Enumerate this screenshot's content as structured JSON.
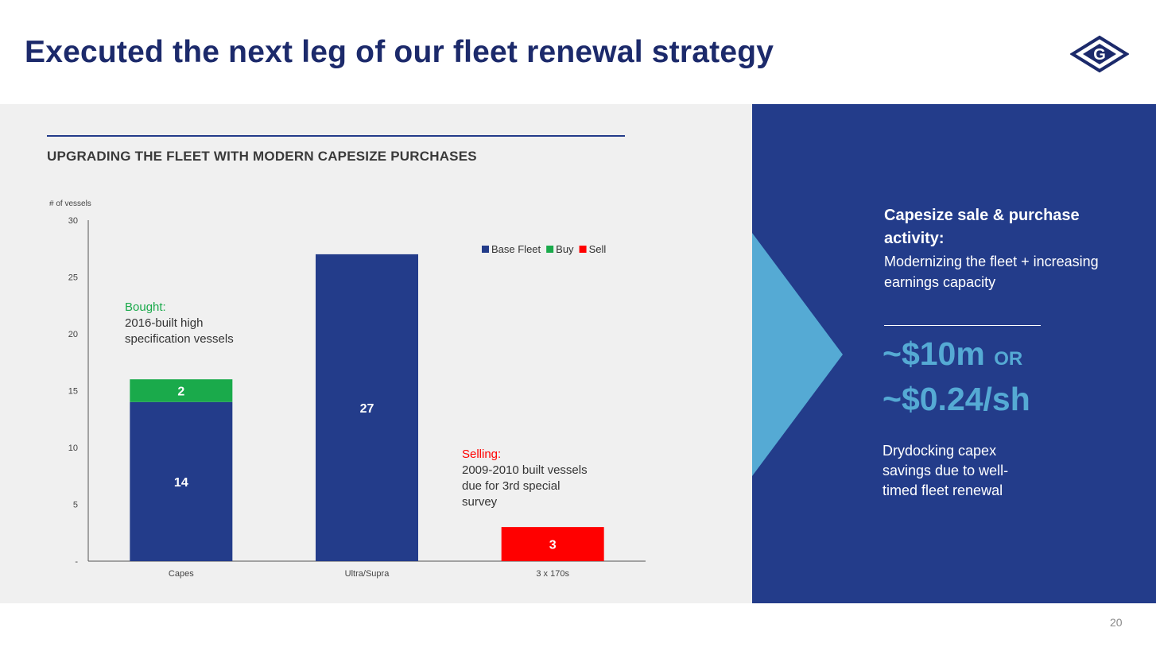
{
  "page": {
    "title": "Executed the next leg of our fleet renewal strategy",
    "page_number": "20",
    "logo_letter": "G"
  },
  "left": {
    "subtitle": "UPGRADING THE FLEET WITH MODERN CAPESIZE PURCHASES",
    "bought_label": "Bought:",
    "bought_text": "2016-built high specification vessels",
    "selling_label": "Selling:",
    "selling_text": "2009-2010 built vessels due for 3rd special survey"
  },
  "right": {
    "heading": "Capesize sale & purchase activity:",
    "subheading": "Modernizing the fleet + increasing earnings capacity",
    "value_1": "~$10m",
    "value_or": "OR",
    "value_2": "~$0.24/sh",
    "note": "Drydocking capex savings due to well-timed fleet renewal"
  },
  "colors": {
    "navy": "#233c8a",
    "buy_green": "#1aaa4b",
    "sell_red": "#ff0000",
    "accent_light_blue": "#55aad4"
  },
  "chart_data": {
    "type": "bar",
    "stacked": true,
    "ylabel": "# of vessels",
    "ylim": [
      0,
      30
    ],
    "yticks": [
      0,
      5,
      10,
      15,
      20,
      25,
      30
    ],
    "ytick_labels": [
      "-",
      "5",
      "10",
      "15",
      "20",
      "25",
      "30"
    ],
    "categories": [
      "Capes",
      "Ultra/Supra",
      "3 x 170s"
    ],
    "series": [
      {
        "name": "Base Fleet",
        "color": "#233c8a",
        "values": [
          14,
          27,
          0
        ]
      },
      {
        "name": "Buy",
        "color": "#1aaa4b",
        "values": [
          2,
          0,
          0
        ]
      },
      {
        "name": "Sell",
        "color": "#ff0000",
        "values": [
          0,
          0,
          3
        ]
      }
    ],
    "legend_position": "top-right",
    "grid": false
  }
}
